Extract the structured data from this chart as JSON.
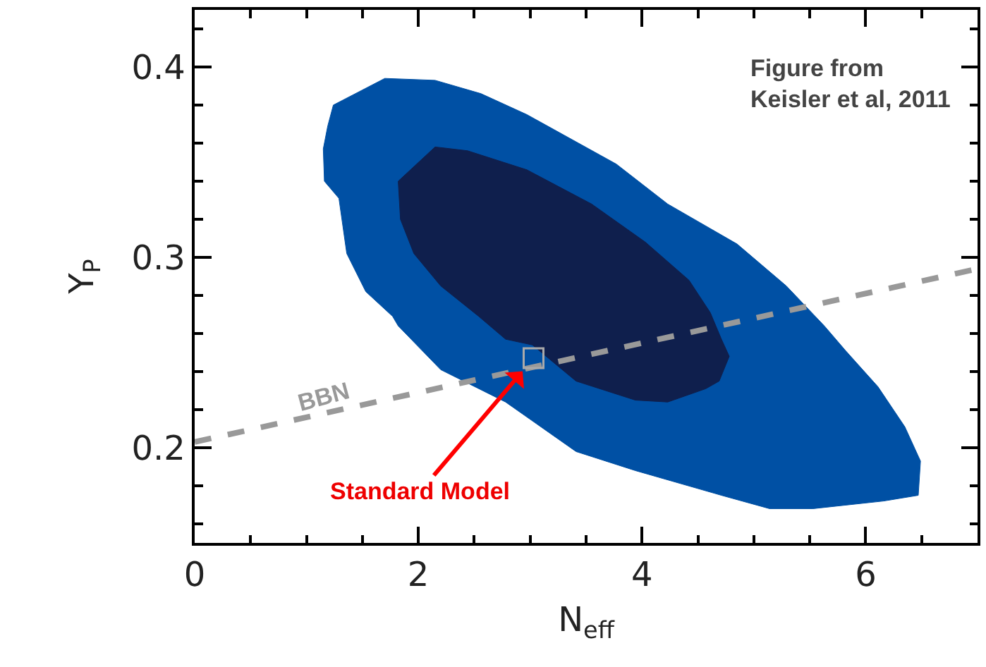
{
  "chart_data": {
    "type": "area",
    "xlabel": "N$_{eff}$",
    "ylabel": "Y$_{P}$",
    "xlim": [
      0,
      7
    ],
    "ylim": [
      0.15,
      0.43
    ],
    "xticks": [
      0,
      {
        "value": 0.5,
        "label": null
      },
      {
        "value": 1,
        "label": null
      },
      {
        "value": 1.5,
        "label": null
      },
      2,
      {
        "value": 2.5,
        "label": null
      },
      {
        "value": 3,
        "label": null
      },
      {
        "value": 3.5,
        "label": null
      },
      4,
      {
        "value": 4.5,
        "label": null
      },
      {
        "value": 5,
        "label": null
      },
      {
        "value": 5.5,
        "label": null
      },
      6,
      {
        "value": 6.5,
        "label": null
      }
    ],
    "yticks": [
      {
        "value": 0.16,
        "label": null
      },
      {
        "value": 0.18,
        "label": null
      },
      0.2,
      {
        "value": 0.22,
        "label": null
      },
      {
        "value": 0.24,
        "label": null
      },
      {
        "value": 0.26,
        "label": null
      },
      {
        "value": 0.28,
        "label": null
      },
      0.3,
      {
        "value": 0.32,
        "label": null
      },
      {
        "value": 0.34,
        "label": null
      },
      {
        "value": 0.36,
        "label": null
      },
      {
        "value": 0.38,
        "label": null
      },
      0.4,
      {
        "value": 0.42,
        "label": null
      }
    ],
    "series": [
      {
        "color": "#0050a4",
        "x": [
          1.24,
          1.7,
          2.15,
          2.56,
          2.97,
          3.77,
          4.23,
          4.85,
          5.29,
          5.63,
          5.82,
          6.11,
          6.35,
          6.49,
          6.47,
          6.16,
          5.53,
          5.14,
          4.71,
          3.94,
          3.41,
          2.78,
          2.2,
          1.82,
          1.77,
          1.53,
          1.36,
          1.29,
          1.16,
          1.15,
          1.19,
          1.24
        ],
        "values": [
          0.38,
          0.394,
          0.393,
          0.386,
          0.375,
          0.349,
          0.328,
          0.307,
          0.285,
          0.264,
          0.251,
          0.232,
          0.211,
          0.193,
          0.175,
          0.172,
          0.168,
          0.168,
          0.175,
          0.188,
          0.198,
          0.224,
          0.241,
          0.264,
          0.269,
          0.282,
          0.302,
          0.331,
          0.34,
          0.357,
          0.369,
          0.38
        ]
      },
      {
        "color": "#0f1f4d",
        "x": [
          1.82,
          2.15,
          2.44,
          2.97,
          3.55,
          4.03,
          4.42,
          4.61,
          4.71,
          4.78,
          4.69,
          4.57,
          4.23,
          3.94,
          3.41,
          3.02,
          2.78,
          2.54,
          2.2,
          1.96,
          1.84,
          1.82
        ],
        "values": [
          0.34,
          0.358,
          0.356,
          0.346,
          0.328,
          0.308,
          0.288,
          0.271,
          0.257,
          0.248,
          0.235,
          0.231,
          0.224,
          0.225,
          0.235,
          0.254,
          0.257,
          0.269,
          0.285,
          0.302,
          0.32,
          0.34
        ]
      },
      {
        "type": "line",
        "color": "#999999",
        "line_style": "dashed",
        "x": [
          0,
          7
        ],
        "values": [
          0.203,
          0.294
        ]
      },
      {
        "type": "scatter",
        "marker": "square",
        "color": "#aaaaaa",
        "x": [
          3.03
        ],
        "values": [
          0.247
        ]
      }
    ],
    "annotations": [
      "Figure from\nKeisler et al, 2011",
      "BBN",
      {
        "text": "Standard Model",
        "x": 3.03,
        "y": 0.247
      }
    ]
  }
}
